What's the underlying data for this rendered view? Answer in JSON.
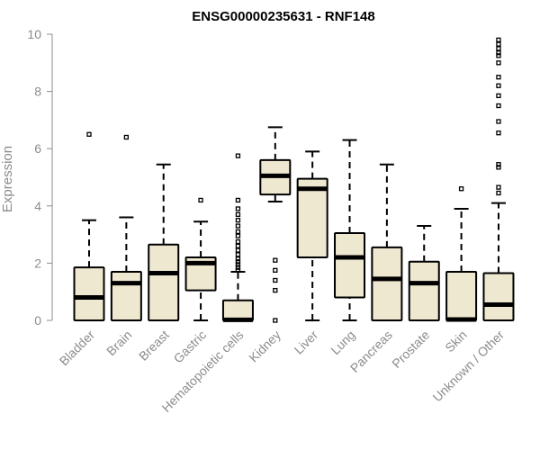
{
  "chart_data": {
    "type": "boxplot",
    "title": "ENSG00000235631 - RNF148",
    "xlabel": "",
    "ylabel": "Expression",
    "ylim": [
      0,
      10
    ],
    "y_ticks": [
      0,
      2,
      4,
      6,
      8,
      10
    ],
    "grid": false,
    "legend": "none",
    "box_fill": "#efe8d0",
    "box_stroke": "#000000",
    "axis_color": "#8c8c8c",
    "categories": [
      "Bladder",
      "Brain",
      "Breast",
      "Gastric",
      "Hematopoietic cells",
      "Kidney",
      "Liver",
      "Lung",
      "Pancreas",
      "Prostate",
      "Skin",
      "Unknown / Other"
    ],
    "boxes": [
      {
        "q1": 0.0,
        "median": 0.8,
        "q3": 1.85,
        "whisker_low": 0.0,
        "whisker_high": 3.5,
        "outliers": [
          6.5
        ]
      },
      {
        "q1": 0.0,
        "median": 1.3,
        "q3": 1.7,
        "whisker_low": 0.0,
        "whisker_high": 3.6,
        "outliers": [
          6.4
        ]
      },
      {
        "q1": 0.0,
        "median": 1.65,
        "q3": 2.65,
        "whisker_low": 0.0,
        "whisker_high": 5.45,
        "outliers": []
      },
      {
        "q1": 1.05,
        "median": 2.0,
        "q3": 2.2,
        "whisker_low": 0.0,
        "whisker_high": 3.45,
        "outliers": [
          4.2
        ]
      },
      {
        "q1": 0.0,
        "median": 0.02,
        "q3": 0.7,
        "whisker_low": 0.0,
        "whisker_high": 1.7,
        "outliers": [
          1.75,
          1.85,
          1.95,
          2.05,
          2.15,
          2.3,
          2.45,
          2.6,
          2.75,
          2.95,
          3.1,
          3.3,
          3.5,
          3.7,
          3.9,
          4.2,
          5.75
        ]
      },
      {
        "q1": 4.4,
        "median": 5.05,
        "q3": 5.6,
        "whisker_low": 4.15,
        "whisker_high": 6.75,
        "outliers": [
          2.1,
          1.75,
          1.4,
          1.05,
          0.0
        ]
      },
      {
        "q1": 2.2,
        "median": 4.6,
        "q3": 4.95,
        "whisker_low": 0.0,
        "whisker_high": 5.9,
        "outliers": []
      },
      {
        "q1": 0.8,
        "median": 2.2,
        "q3": 3.05,
        "whisker_low": 0.0,
        "whisker_high": 6.3,
        "outliers": []
      },
      {
        "q1": 0.0,
        "median": 1.45,
        "q3": 2.55,
        "whisker_low": 0.0,
        "whisker_high": 5.45,
        "outliers": []
      },
      {
        "q1": 0.0,
        "median": 1.3,
        "q3": 2.05,
        "whisker_low": 0.0,
        "whisker_high": 3.3,
        "outliers": []
      },
      {
        "q1": 0.0,
        "median": 0.03,
        "q3": 1.7,
        "whisker_low": 0.0,
        "whisker_high": 3.9,
        "outliers": [
          4.6
        ]
      },
      {
        "q1": 0.0,
        "median": 0.55,
        "q3": 1.65,
        "whisker_low": 0.0,
        "whisker_high": 4.1,
        "outliers": [
          4.45,
          4.65,
          5.35,
          5.45,
          6.55,
          6.95,
          7.5,
          7.85,
          8.2,
          8.5,
          9.0,
          9.25,
          9.35,
          9.5,
          9.65,
          9.8
        ]
      }
    ]
  }
}
